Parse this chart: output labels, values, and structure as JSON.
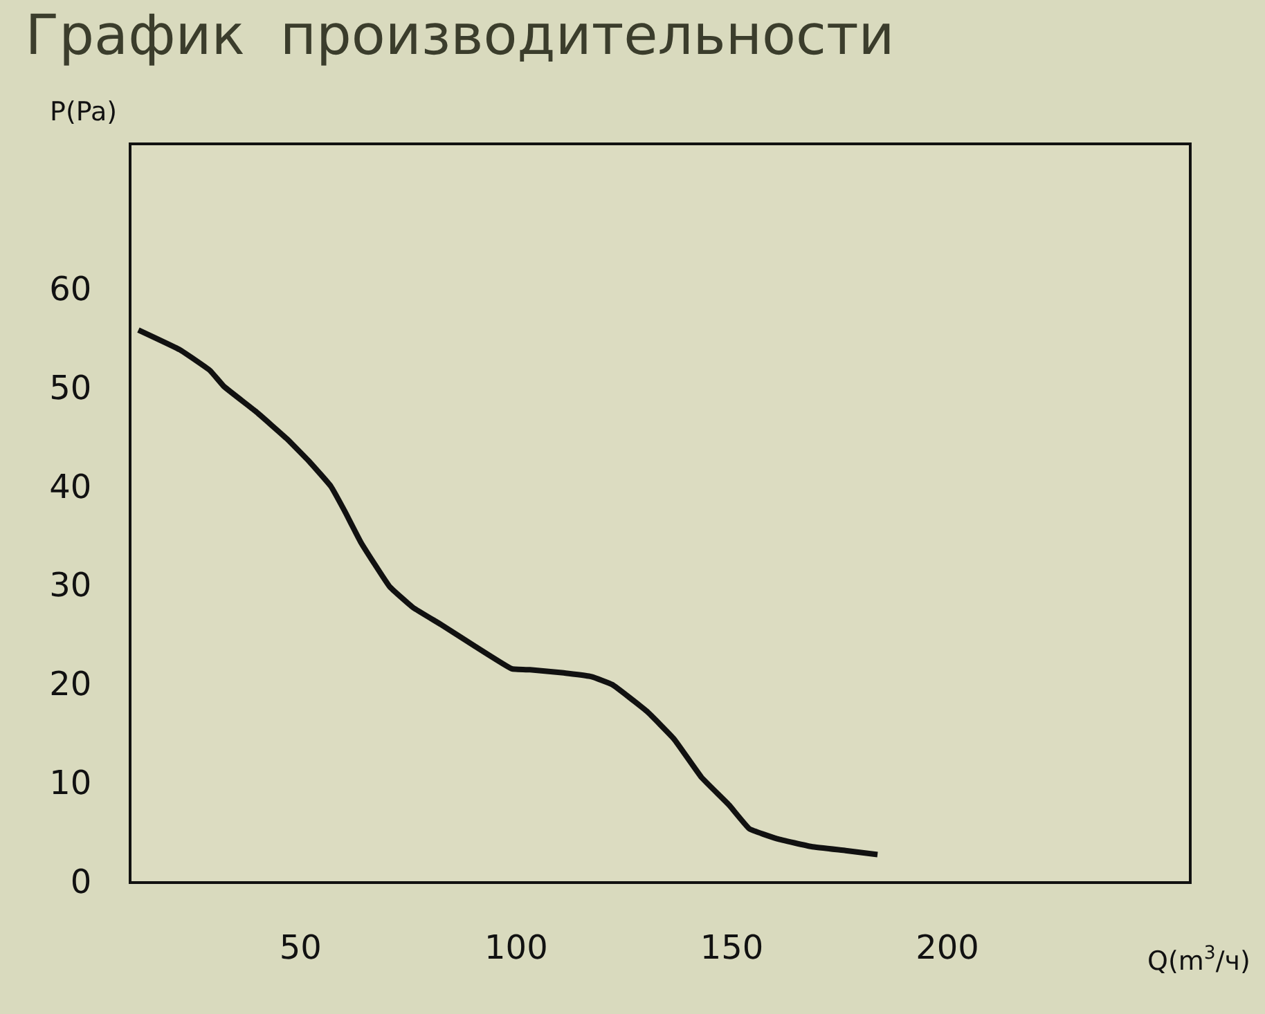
{
  "chart_data": {
    "type": "line",
    "title": "График  производительности",
    "xlabel": "Q(m$^{3}$/ч)",
    "ylabel": "P(Pa)",
    "x": [
      12.4,
      22,
      29,
      32.2,
      39.5,
      46.8,
      52.2,
      57,
      60.2,
      64,
      70.7,
      76.1,
      82.5,
      90.4,
      99,
      103.2,
      111,
      117.5,
      122.3,
      130.3,
      136.6,
      143,
      149.4,
      154.1,
      160.5,
      168.5,
      176.4,
      183.8
    ],
    "series": [
      {
        "color": "#111111",
        "values": [
          55.8,
          53.8,
          51.7,
          50.1,
          47.6,
          44.8,
          42.4,
          40,
          37.5,
          34.3,
          29.8,
          27.7,
          26,
          23.8,
          21.5,
          21.4,
          21.1,
          20.7,
          19.9,
          17.2,
          14.4,
          10.5,
          7.7,
          5.3,
          4.3,
          3.5,
          3.1,
          2.7
        ]
      }
    ],
    "xlim": [
      10.8,
      256
    ],
    "ylim": [
      0,
      74.5
    ],
    "xticks": [
      50,
      100,
      150,
      200
    ],
    "yticks": [
      0,
      10,
      20,
      30,
      40,
      50,
      60
    ],
    "grid": false,
    "marker": "none",
    "line_style": "solid"
  }
}
